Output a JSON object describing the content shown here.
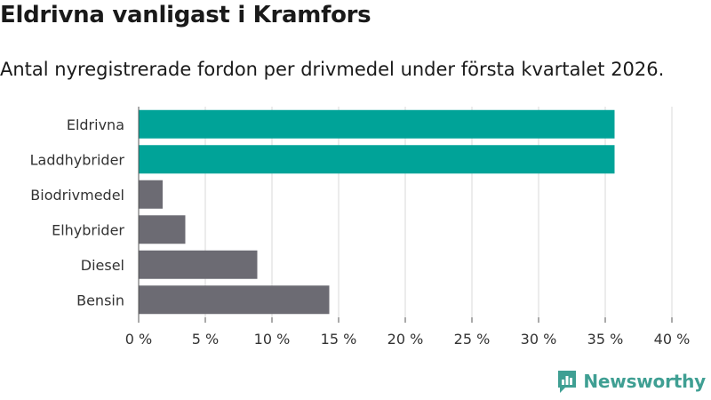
{
  "header": {
    "title": "Eldrivna vanligast i Kramfors",
    "subtitle": "Antal nyregistrerade fordon per drivmedel under första kvartalet 2026."
  },
  "chart_data": {
    "type": "bar",
    "orientation": "horizontal",
    "categories": [
      "Eldrivna",
      "Laddhybrider",
      "Biodrivmedel",
      "Elhybrider",
      "Diesel",
      "Bensin"
    ],
    "values": [
      35.7,
      35.7,
      1.8,
      3.5,
      8.9,
      14.3
    ],
    "colors": [
      "#00a398",
      "#00a398",
      "#6c6b73",
      "#6c6b73",
      "#6c6b73",
      "#6c6b73"
    ],
    "xlim": [
      0,
      40
    ],
    "xticks": [
      0,
      5,
      10,
      15,
      20,
      25,
      30,
      35,
      40
    ],
    "tick_suffix": " %",
    "grid": true,
    "xlabel": "",
    "ylabel": ""
  },
  "branding": {
    "name": "Newsworthy",
    "logo_icon": "bar-chart-speech-bubble-icon",
    "color": "#3f9f93"
  }
}
